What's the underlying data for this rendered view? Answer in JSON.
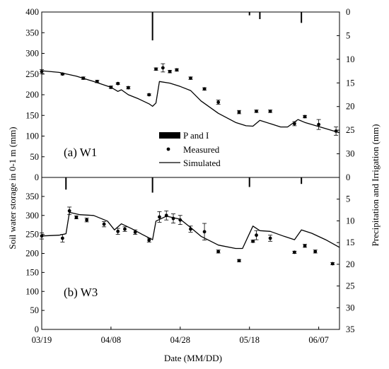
{
  "chart_data": [
    {
      "type": "line",
      "panel_label": "(a) W1",
      "x_range": [
        "2011-03-19",
        "2011-06-13"
      ],
      "ylim": [
        0,
        400
      ],
      "y_ticks": [
        0,
        50,
        100,
        150,
        200,
        250,
        300,
        350,
        400
      ],
      "y2lim": [
        35,
        0
      ],
      "y2_ticks": [
        0,
        5,
        10,
        15,
        20,
        25,
        30
      ],
      "legend": {
        "placement": "center-right",
        "entries": [
          "P and I",
          "Measured",
          "Simulated"
        ]
      },
      "series": [
        {
          "name": "Simulated",
          "kind": "line",
          "points": [
            [
              "2011-03-19",
              258
            ],
            [
              "2011-03-24",
              254
            ],
            [
              "2011-03-29",
              245
            ],
            [
              "2011-04-03",
              232
            ],
            [
              "2011-04-08",
              218
            ],
            [
              "2011-04-10",
              208
            ],
            [
              "2011-04-11",
              212
            ],
            [
              "2011-04-13",
              200
            ],
            [
              "2011-04-16",
              190
            ],
            [
              "2011-04-19",
              178
            ],
            [
              "2011-04-20",
              172
            ],
            [
              "2011-04-21",
              180
            ],
            [
              "2011-04-22",
              232
            ],
            [
              "2011-04-25",
              228
            ],
            [
              "2011-04-28",
              220
            ],
            [
              "2011-05-01",
              210
            ],
            [
              "2011-05-04",
              185
            ],
            [
              "2011-05-09",
              155
            ],
            [
              "2011-05-14",
              133
            ],
            [
              "2011-05-17",
              125
            ],
            [
              "2011-05-19",
              124
            ],
            [
              "2011-05-21",
              138
            ],
            [
              "2011-05-24",
              130
            ],
            [
              "2011-05-27",
              122
            ],
            [
              "2011-05-29",
              122
            ],
            [
              "2011-06-01",
              140
            ],
            [
              "2011-06-03",
              133
            ],
            [
              "2011-06-07",
              123
            ],
            [
              "2011-06-13",
              108
            ]
          ]
        },
        {
          "name": "Measured",
          "kind": "points",
          "points": [
            [
              "2011-03-19",
              256,
              5
            ],
            [
              "2011-03-25",
              250,
              2
            ],
            [
              "2011-03-31",
              240,
              3
            ],
            [
              "2011-04-04",
              232,
              3
            ],
            [
              "2011-04-08",
              218,
              3
            ],
            [
              "2011-04-10",
              227,
              2
            ],
            [
              "2011-04-13",
              217,
              3
            ],
            [
              "2011-04-19",
              200,
              2
            ],
            [
              "2011-04-21",
              262,
              3
            ],
            [
              "2011-04-23",
              265,
              10
            ],
            [
              "2011-04-25",
              256,
              3
            ],
            [
              "2011-04-27",
              260,
              3
            ],
            [
              "2011-05-01",
              240,
              3
            ],
            [
              "2011-05-05",
              214,
              3
            ],
            [
              "2011-05-09",
              182,
              5
            ],
            [
              "2011-05-15",
              158,
              4
            ],
            [
              "2011-05-20",
              160,
              3
            ],
            [
              "2011-05-24",
              160,
              3
            ],
            [
              "2011-05-31",
              130,
              5
            ],
            [
              "2011-06-03",
              147,
              3
            ],
            [
              "2011-06-07",
              128,
              12
            ],
            [
              "2011-06-12",
              112,
              10
            ]
          ]
        },
        {
          "name": "P and I",
          "kind": "bars",
          "points": [
            [
              "2011-04-20",
              6.0
            ],
            [
              "2011-05-18",
              0.7
            ],
            [
              "2011-05-21",
              1.5
            ],
            [
              "2011-06-02",
              2.3
            ]
          ]
        }
      ]
    },
    {
      "type": "line",
      "panel_label": "(b) W3",
      "x_range": [
        "2011-03-19",
        "2011-06-13"
      ],
      "ylim": [
        0,
        400
      ],
      "y_ticks": [
        0,
        50,
        100,
        150,
        200,
        250,
        300,
        350
      ],
      "y2lim": [
        35,
        0
      ],
      "y2_ticks": [
        0,
        5,
        10,
        15,
        20,
        25,
        30,
        35
      ],
      "series": [
        {
          "name": "Simulated",
          "kind": "line",
          "points": [
            [
              "2011-03-19",
              246
            ],
            [
              "2011-03-24",
              248
            ],
            [
              "2011-03-26",
              252
            ],
            [
              "2011-03-27",
              308
            ],
            [
              "2011-03-30",
              302
            ],
            [
              "2011-04-03",
              300
            ],
            [
              "2011-04-07",
              285
            ],
            [
              "2011-04-09",
              262
            ],
            [
              "2011-04-11",
              278
            ],
            [
              "2011-04-14",
              265
            ],
            [
              "2011-04-17",
              250
            ],
            [
              "2011-04-20",
              236
            ],
            [
              "2011-04-21",
              285
            ],
            [
              "2011-04-24",
              298
            ],
            [
              "2011-04-28",
              290
            ],
            [
              "2011-05-01",
              268
            ],
            [
              "2011-05-04",
              245
            ],
            [
              "2011-05-09",
              222
            ],
            [
              "2011-05-14",
              213
            ],
            [
              "2011-05-16",
              213
            ],
            [
              "2011-05-19",
              272
            ],
            [
              "2011-05-21",
              260
            ],
            [
              "2011-05-24",
              258
            ],
            [
              "2011-05-28",
              245
            ],
            [
              "2011-05-31",
              236
            ],
            [
              "2011-06-02",
              262
            ],
            [
              "2011-06-05",
              253
            ],
            [
              "2011-06-09",
              236
            ],
            [
              "2011-06-13",
              216
            ]
          ]
        },
        {
          "name": "Measured",
          "kind": "points",
          "points": [
            [
              "2011-03-19",
              246,
              8
            ],
            [
              "2011-03-25",
              240,
              10
            ],
            [
              "2011-03-27",
              312,
              10
            ],
            [
              "2011-03-29",
              295,
              4
            ],
            [
              "2011-04-01",
              288,
              5
            ],
            [
              "2011-04-06",
              277,
              7
            ],
            [
              "2011-04-10",
              258,
              8
            ],
            [
              "2011-04-12",
              264,
              6
            ],
            [
              "2011-04-15",
              256,
              6
            ],
            [
              "2011-04-19",
              235,
              5
            ],
            [
              "2011-04-22",
              296,
              14
            ],
            [
              "2011-04-24",
              300,
              12
            ],
            [
              "2011-04-26",
              292,
              12
            ],
            [
              "2011-04-28",
              288,
              12
            ],
            [
              "2011-05-01",
              264,
              8
            ],
            [
              "2011-05-05",
              257,
              22
            ],
            [
              "2011-05-09",
              205,
              4
            ],
            [
              "2011-05-15",
              181,
              3
            ],
            [
              "2011-05-19",
              232,
              3
            ],
            [
              "2011-05-20",
              248,
              12
            ],
            [
              "2011-05-24",
              240,
              8
            ],
            [
              "2011-05-31",
              203,
              3
            ],
            [
              "2011-06-03",
              220,
              4
            ],
            [
              "2011-06-06",
              205,
              4
            ],
            [
              "2011-06-11",
              173,
              3
            ]
          ]
        },
        {
          "name": "P and I",
          "kind": "bars",
          "points": [
            [
              "2011-03-26",
              2.8
            ],
            [
              "2011-04-20",
              3.5
            ],
            [
              "2011-05-18",
              2.2
            ],
            [
              "2011-06-02",
              1.5
            ]
          ]
        }
      ]
    }
  ],
  "axes": {
    "x_ticks": [
      "03/19",
      "04/08",
      "04/28",
      "05/18",
      "06/07"
    ],
    "x_tick_dates": [
      "2011-03-19",
      "2011-04-08",
      "2011-04-28",
      "2011-05-18",
      "2011-06-07"
    ],
    "xlabel": "Date (MM/DD)",
    "ylabel": "Soil water storage in 0-1 m (mm)",
    "y2label": "Precipitation and Irrigation (mm)"
  }
}
